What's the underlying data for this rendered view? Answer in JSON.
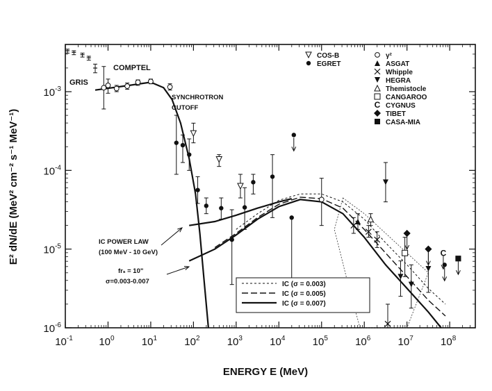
{
  "chart_data": {
    "type": "scatter",
    "title": "",
    "xlabel": "ENERGY E (MeV)",
    "ylabel": "E² dN/dE (MeV² cm⁻² s⁻¹ MeV⁻¹)",
    "xscale": "log",
    "yscale": "log",
    "xlim_log10": [
      -1,
      8.6
    ],
    "ylim_log10": [
      -6,
      -2.4
    ],
    "x_ticks_log10": [
      -1,
      0,
      1,
      2,
      3,
      4,
      5,
      6,
      7,
      8
    ],
    "y_ticks_log10": [
      -6,
      -5,
      -4,
      -3
    ],
    "x_tick_labels": [
      {
        "base": "10",
        "exp": "-1"
      },
      {
        "base": "10",
        "exp": "0"
      },
      {
        "base": "10",
        "exp": "1"
      },
      {
        "base": "10",
        "exp": "2"
      },
      {
        "base": "10",
        "exp": "3"
      },
      {
        "base": "10",
        "exp": "4"
      },
      {
        "base": "10",
        "exp": "5"
      },
      {
        "base": "10",
        "exp": "6"
      },
      {
        "base": "10",
        "exp": "7"
      },
      {
        "base": "10",
        "exp": "8"
      }
    ],
    "y_tick_labels": [
      {
        "base": "10",
        "exp": "-6"
      },
      {
        "base": "10",
        "exp": "-5"
      },
      {
        "base": "10",
        "exp": "-4"
      },
      {
        "base": "10",
        "exp": "-3"
      }
    ],
    "annotations": {
      "gris": "GRIS",
      "comptel": "COMPTEL",
      "synchrotron": "SYNCHROTRON",
      "cutoff": "CUTOFF",
      "ic_power_law": "IC POWER LAW",
      "ic_power_law_range": "(100 MeV - 10 GeV)",
      "frs": "frₛ = 10\"",
      "sigma_range": "σ=0.003-0.007"
    },
    "marker_legend": [
      {
        "symbol": "▽",
        "label": "COS-B"
      },
      {
        "symbol": "●",
        "label": "EGRET"
      },
      {
        "symbol": "○",
        "label": "γ²"
      },
      {
        "symbol": "▲",
        "label": "ASGAT"
      },
      {
        "symbol": "×",
        "label": "Whipple"
      },
      {
        "symbol": "▼",
        "label": "HEGRA"
      },
      {
        "symbol": "△",
        "label": "Themistocle"
      },
      {
        "symbol": "□",
        "label": "CANGAROO"
      },
      {
        "symbol": "C",
        "label": "CYGNUS"
      },
      {
        "symbol": "◆",
        "label": "TIBET"
      },
      {
        "symbol": "■",
        "label": "CASA-MIA"
      }
    ],
    "line_legend": [
      {
        "label": "IC (σ = 0.003)",
        "dash": "3,3",
        "width": 1
      },
      {
        "label": "IC (σ = 0.005)",
        "dash": "9,4",
        "width": 1.4
      },
      {
        "label": "IC (σ = 0.007)",
        "dash": "",
        "width": 2.2
      }
    ],
    "series": [
      {
        "name": "GRIS",
        "marker": "cross",
        "points": [
          {
            "x": -0.95,
            "y": -2.48,
            "lo": -2.51,
            "hi": -2.46
          },
          {
            "x": -0.8,
            "y": -2.5,
            "lo": -2.53,
            "hi": -2.48
          },
          {
            "x": -0.6,
            "y": -2.53,
            "lo": -2.56,
            "hi": -2.51
          },
          {
            "x": -0.45,
            "y": -2.57,
            "lo": -2.6,
            "hi": -2.55
          },
          {
            "x": -0.3,
            "y": -2.7,
            "lo": -2.76,
            "hi": -2.65
          }
        ]
      },
      {
        "name": "COMPTEL",
        "marker": "open-circle",
        "points": [
          {
            "x": -0.1,
            "y": -2.95,
            "lo": -3.22,
            "hi": -2.68
          },
          {
            "x": 0.0,
            "y": -2.92,
            "lo": -3.02,
            "hi": -2.84
          },
          {
            "x": 0.2,
            "y": -2.96,
            "lo": -3.0,
            "hi": -2.92
          },
          {
            "x": 0.45,
            "y": -2.93,
            "lo": -2.97,
            "hi": -2.89
          },
          {
            "x": 0.7,
            "y": -2.88,
            "lo": -2.92,
            "hi": -2.85
          },
          {
            "x": 1.0,
            "y": -2.87,
            "lo": -2.9,
            "hi": -2.84
          },
          {
            "x": 1.45,
            "y": -2.94,
            "lo": -2.98,
            "hi": -2.9
          }
        ]
      },
      {
        "name": "EGRET",
        "marker": "filled-circle",
        "points": [
          {
            "x": 1.6,
            "y": -3.65,
            "lo": -4.05,
            "hi": -3.3
          },
          {
            "x": 1.75,
            "y": -3.68,
            "lo": -3.9,
            "hi": -3.55
          },
          {
            "x": 1.9,
            "y": -3.8,
            "lo": -4.0,
            "hi": -3.6
          },
          {
            "x": 2.1,
            "y": -4.25,
            "lo": -4.42,
            "hi": -4.08
          },
          {
            "x": 2.3,
            "y": -4.45,
            "lo": -4.55,
            "hi": -4.35
          },
          {
            "x": 2.65,
            "y": -4.48,
            "lo": -4.62,
            "hi": -4.35
          },
          {
            "x": 2.9,
            "y": -4.88,
            "lo": -5.45,
            "hi": -4.5
          },
          {
            "x": 3.2,
            "y": -4.47,
            "lo": -4.75,
            "hi": -4.22
          },
          {
            "x": 3.4,
            "y": -4.15,
            "lo": -4.3,
            "hi": -4.05
          },
          {
            "x": 3.85,
            "y": -4.08,
            "lo": -4.6,
            "hi": -3.8
          },
          {
            "x": 4.3,
            "y": -4.6,
            "lo": -5.5,
            "hi": -4.6
          }
        ]
      },
      {
        "name": "COS-B",
        "marker": "open-down-triangle",
        "points": [
          {
            "x": 2.0,
            "y": -3.53,
            "lo": -3.65,
            "hi": -3.4
          },
          {
            "x": 2.6,
            "y": -3.86,
            "lo": -3.95,
            "hi": -3.8
          },
          {
            "x": 3.1,
            "y": -4.2,
            "lo": -4.35,
            "hi": -4.05
          }
        ]
      },
      {
        "name": "gamma2",
        "marker": "open-circle",
        "points": [
          {
            "x": 5.0,
            "y": -4.37,
            "lo": -4.7,
            "hi": -4.1
          }
        ]
      },
      {
        "name": "HEGRA",
        "marker": "filled-down-triangle",
        "points": [
          {
            "x": 6.5,
            "y": -4.15,
            "lo": -4.4,
            "hi": -3.9
          },
          {
            "x": 7.5,
            "y": -5.25,
            "lo": -5.55,
            "hi": -5.0
          }
        ]
      },
      {
        "name": "Whipple",
        "marker": "x",
        "points": [
          {
            "x": 5.75,
            "y": -4.7,
            "lo": -4.8,
            "hi": -4.6
          },
          {
            "x": 6.1,
            "y": -4.78,
            "lo": -4.85,
            "hi": -4.7
          },
          {
            "x": 6.3,
            "y": -4.88,
            "lo": -4.98,
            "hi": -4.78
          },
          {
            "x": 6.55,
            "y": -5.95,
            "lo": -6.0,
            "hi": -5.7
          }
        ]
      },
      {
        "name": "ASGAT",
        "marker": "filled-up-triangle",
        "points": [
          {
            "x": 5.85,
            "y": -4.65,
            "lo": -4.75,
            "hi": -4.55
          }
        ]
      },
      {
        "name": "Themistocle",
        "marker": "open-up-triangle",
        "points": [
          {
            "x": 6.15,
            "y": -4.62,
            "lo": -4.7,
            "hi": -4.55
          }
        ]
      },
      {
        "name": "CANGAROO",
        "marker": "open-square",
        "points": [
          {
            "x": 6.95,
            "y": -5.05,
            "lo": -5.35,
            "hi": -4.85
          }
        ]
      },
      {
        "name": "HEGRA-core",
        "marker": "filled-down-triangle",
        "points": [
          {
            "x": 6.85,
            "y": -5.35,
            "lo": -5.6,
            "hi": -5.15
          },
          {
            "x": 7.1,
            "y": -5.45,
            "lo": -5.75,
            "hi": -5.2
          }
        ]
      },
      {
        "name": "TIBET",
        "marker": "filled-diamond",
        "points": [
          {
            "x": 7.0,
            "y": -4.8,
            "lo": -4.8,
            "hi": -4.8
          },
          {
            "x": 7.5,
            "y": -5.0,
            "lo": -5.0,
            "hi": -5.0
          }
        ]
      },
      {
        "name": "CASA-MIA",
        "marker": "filled-square",
        "points": [
          {
            "x": 8.2,
            "y": -5.12,
            "lo": -5.12,
            "hi": -5.12
          }
        ]
      }
    ],
    "upper_limits": [
      {
        "x": 4.35,
        "y": -3.55,
        "marker": "filled-circle"
      },
      {
        "x": 7.0,
        "y": -4.8,
        "marker": "filled-diamond"
      },
      {
        "x": 7.5,
        "y": -5.0,
        "marker": "filled-diamond"
      },
      {
        "x": 7.88,
        "y": -5.2,
        "marker": "filled-circle"
      },
      {
        "x": 8.2,
        "y": -5.12,
        "marker": "filled-square"
      },
      {
        "x": 7.85,
        "y": -5.05,
        "marker": "letter-C"
      }
    ],
    "curves": [
      {
        "name": "Synchrotron",
        "style": "solid",
        "points": [
          [
            -0.3,
            -2.98
          ],
          [
            0.5,
            -2.92
          ],
          [
            1.0,
            -2.88
          ],
          [
            1.3,
            -2.95
          ],
          [
            1.5,
            -3.1
          ],
          [
            1.7,
            -3.4
          ],
          [
            1.9,
            -3.85
          ],
          [
            2.05,
            -4.3
          ],
          [
            2.15,
            -4.8
          ],
          [
            2.25,
            -5.4
          ],
          [
            2.35,
            -6.0
          ]
        ]
      },
      {
        "name": "IC power law",
        "style": "solid",
        "points": [
          [
            1.9,
            -4.7
          ],
          [
            2.5,
            -4.65
          ],
          [
            3.0,
            -4.57
          ],
          [
            3.5,
            -4.48
          ],
          [
            4.0,
            -4.4
          ],
          [
            4.3,
            -4.36
          ]
        ]
      },
      {
        "name": "IC (sigma = 0.007)",
        "style": "solid",
        "points": [
          [
            1.9,
            -5.15
          ],
          [
            2.5,
            -5.0
          ],
          [
            3.0,
            -4.82
          ],
          [
            3.5,
            -4.62
          ],
          [
            4.0,
            -4.46
          ],
          [
            4.5,
            -4.37
          ],
          [
            5.0,
            -4.4
          ],
          [
            5.5,
            -4.55
          ],
          [
            6.0,
            -4.85
          ],
          [
            6.5,
            -5.2
          ],
          [
            7.0,
            -5.5
          ],
          [
            7.5,
            -5.8
          ],
          [
            7.8,
            -6.0
          ]
        ]
      },
      {
        "name": "IC (sigma = 0.005)",
        "style": "dashed",
        "points": [
          [
            2.5,
            -4.98
          ],
          [
            3.0,
            -4.8
          ],
          [
            3.5,
            -4.6
          ],
          [
            4.0,
            -4.43
          ],
          [
            4.5,
            -4.34
          ],
          [
            5.0,
            -4.36
          ],
          [
            5.5,
            -4.48
          ],
          [
            6.0,
            -4.75
          ],
          [
            6.5,
            -5.05
          ],
          [
            7.0,
            -5.35
          ],
          [
            7.5,
            -5.65
          ],
          [
            7.9,
            -5.85
          ]
        ]
      },
      {
        "name": "IC (sigma = 0.003)",
        "style": "dotted",
        "points": [
          [
            3.0,
            -4.75
          ],
          [
            3.5,
            -4.55
          ],
          [
            4.0,
            -4.38
          ],
          [
            4.5,
            -4.3
          ],
          [
            5.0,
            -4.3
          ],
          [
            5.5,
            -4.4
          ],
          [
            6.0,
            -4.62
          ],
          [
            6.5,
            -4.92
          ],
          [
            7.0,
            -5.2
          ],
          [
            7.5,
            -5.5
          ],
          [
            7.9,
            -5.7
          ]
        ]
      }
    ],
    "uncertainty_band": {
      "upper": [
        [
          5.5,
          -4.35
        ],
        [
          6.0,
          -4.55
        ],
        [
          6.5,
          -4.8
        ],
        [
          7.0,
          -5.05
        ],
        [
          7.5,
          -5.3
        ]
      ],
      "lower": [
        [
          5.3,
          -4.75
        ],
        [
          5.6,
          -5.4
        ],
        [
          5.9,
          -6.0
        ],
        [
          6.6,
          -6.0
        ],
        [
          7.0,
          -6.0
        ]
      ]
    }
  }
}
